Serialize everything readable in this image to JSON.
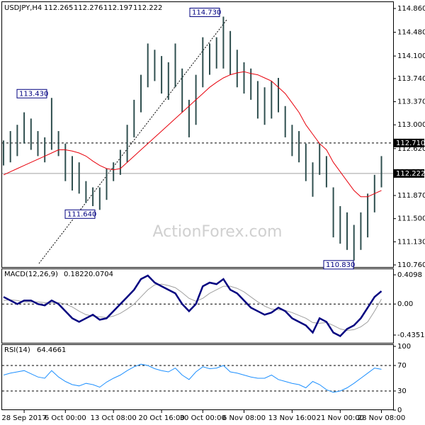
{
  "chart_data": {
    "type": "ohlc",
    "title": "USDJPY,H4",
    "quote": [
      112.265,
      112.276,
      112.197,
      112.222
    ],
    "watermark": "ActionForex.com",
    "x": [
      null,
      null,
      null,
      "28 Sep 2017",
      null,
      null,
      null,
      null,
      null,
      "6 Oct 00:00",
      null,
      null,
      null,
      null,
      null,
      null,
      "13 Oct 08:00",
      null,
      null,
      null,
      null,
      null,
      null,
      "20 Oct 16:00",
      null,
      null,
      null,
      null,
      null,
      "30 Oct 00:00",
      null,
      null,
      null,
      null,
      null,
      "6 Nov 08:00",
      null,
      null,
      null,
      null,
      null,
      null,
      "13 Nov 16:00",
      null,
      null,
      null,
      null,
      null,
      null,
      "21 Nov 00:00",
      null,
      null,
      null,
      null,
      null,
      "28 Nov 08:00"
    ],
    "high": [
      112.75,
      112.9,
      113.0,
      113.2,
      113.1,
      112.9,
      112.8,
      113.43,
      112.9,
      112.7,
      112.5,
      112.4,
      112.1,
      112.0,
      112.0,
      112.3,
      112.4,
      112.6,
      113.0,
      113.4,
      113.8,
      114.3,
      114.2,
      114.1,
      114.0,
      114.3,
      113.9,
      113.4,
      113.8,
      114.4,
      114.3,
      114.4,
      114.73,
      114.5,
      114.2,
      114.0,
      113.9,
      113.7,
      113.6,
      113.7,
      113.75,
      113.3,
      113.0,
      112.9,
      112.7,
      112.4,
      112.7,
      112.5,
      112.0,
      111.7,
      111.6,
      111.4,
      111.6,
      111.9,
      112.2,
      112.5
    ],
    "low": [
      112.35,
      112.4,
      112.5,
      112.7,
      112.6,
      112.5,
      112.4,
      112.6,
      112.5,
      112.1,
      111.95,
      111.9,
      111.75,
      111.7,
      111.64,
      111.8,
      112.1,
      112.2,
      112.4,
      112.8,
      113.2,
      113.6,
      113.7,
      113.5,
      113.4,
      113.6,
      113.2,
      112.8,
      113.0,
      113.6,
      113.8,
      113.9,
      113.9,
      113.8,
      113.6,
      113.5,
      113.4,
      113.1,
      113.0,
      113.1,
      113.2,
      112.8,
      112.5,
      112.4,
      112.1,
      111.85,
      112.2,
      112.0,
      111.2,
      111.1,
      111.0,
      110.83,
      111.0,
      111.2,
      111.6,
      112.0
    ],
    "ma": [
      112.2,
      112.25,
      112.3,
      112.35,
      112.4,
      112.45,
      112.5,
      112.55,
      112.6,
      112.6,
      112.58,
      112.55,
      112.5,
      112.42,
      112.35,
      112.3,
      112.28,
      112.3,
      112.4,
      112.5,
      112.6,
      112.7,
      112.8,
      112.9,
      113.0,
      113.1,
      113.2,
      113.3,
      113.4,
      113.5,
      113.6,
      113.68,
      113.75,
      113.8,
      113.83,
      113.85,
      113.82,
      113.8,
      113.75,
      113.7,
      113.6,
      113.5,
      113.35,
      113.2,
      113.0,
      112.85,
      112.7,
      112.6,
      112.4,
      112.25,
      112.1,
      111.95,
      111.85,
      111.85,
      111.9,
      111.95
    ],
    "bar_color": "#2f4f4f",
    "ma_color": "#e8000b",
    "ylim": [
      110.76,
      114.86
    ],
    "yticks": [
      {
        "value": 114.86,
        "label": "114.860"
      },
      {
        "value": 114.48,
        "label": "114.480"
      },
      {
        "value": 114.1,
        "label": "114.100"
      },
      {
        "value": 113.74,
        "label": "113.740"
      },
      {
        "value": 113.37,
        "label": "113.370"
      },
      {
        "value": 113.0,
        "label": "113.000"
      },
      {
        "value": 112.62,
        "label": "112.620"
      },
      {
        "value": 111.87,
        "label": "111.870"
      },
      {
        "value": 111.5,
        "label": "111.500"
      },
      {
        "value": 111.13,
        "label": "111.130"
      },
      {
        "value": 110.76,
        "label": "110.760"
      }
    ],
    "annotations": [
      {
        "value": 114.73,
        "label": "114.730"
      },
      {
        "value": 113.43,
        "label": "113.430"
      },
      {
        "value": 111.64,
        "label": "111.640"
      },
      {
        "value": 110.83,
        "label": "110.830"
      }
    ],
    "level": {
      "value": 112.71,
      "label": "112.710"
    },
    "last": 112.222,
    "macd": {
      "title": "MACD(12,26,9)",
      "readout": [
        0.1822,
        0.0704
      ],
      "color": "#000080",
      "signal_color": "#a0a0a0",
      "values": [
        0.1,
        0.05,
        0.0,
        0.05,
        0.05,
        0.0,
        -0.02,
        0.05,
        0.0,
        -0.1,
        -0.2,
        -0.25,
        -0.2,
        -0.15,
        -0.22,
        -0.2,
        -0.1,
        0.0,
        0.1,
        0.2,
        0.35,
        0.4,
        0.3,
        0.25,
        0.2,
        0.15,
        0.0,
        -0.1,
        0.0,
        0.25,
        0.3,
        0.28,
        0.35,
        0.2,
        0.15,
        0.05,
        -0.05,
        -0.1,
        -0.15,
        -0.12,
        -0.05,
        -0.1,
        -0.2,
        -0.25,
        -0.3,
        -0.4,
        -0.2,
        -0.25,
        -0.4,
        -0.45,
        -0.35,
        -0.3,
        -0.2,
        -0.05,
        0.1,
        0.18
      ],
      "signal": [
        0.05,
        0.06,
        0.05,
        0.03,
        0.03,
        0.03,
        0.02,
        0.02,
        0.02,
        0.0,
        -0.04,
        -0.1,
        -0.15,
        -0.17,
        -0.18,
        -0.19,
        -0.17,
        -0.13,
        -0.07,
        0.0,
        0.1,
        0.2,
        0.27,
        0.28,
        0.26,
        0.23,
        0.16,
        0.08,
        0.04,
        0.08,
        0.15,
        0.2,
        0.25,
        0.25,
        0.22,
        0.17,
        0.1,
        0.03,
        -0.03,
        -0.07,
        -0.08,
        -0.09,
        -0.12,
        -0.16,
        -0.2,
        -0.26,
        -0.27,
        -0.26,
        -0.3,
        -0.35,
        -0.37,
        -0.36,
        -0.32,
        -0.25,
        -0.1,
        0.07
      ],
      "ylim": [
        -0.4351,
        0.4098
      ],
      "yticks": [
        0.4098,
        {
          "value": 0,
          "label": "0.00"
        },
        -0.4351
      ]
    },
    "rsi": {
      "title": "RSI(14)",
      "readout": 64.4661,
      "color": "#1e90ff",
      "values": [
        55,
        58,
        60,
        62,
        57,
        52,
        50,
        62,
        52,
        45,
        40,
        38,
        42,
        40,
        36,
        44,
        50,
        55,
        62,
        68,
        72,
        70,
        65,
        62,
        60,
        66,
        55,
        48,
        60,
        68,
        65,
        66,
        70,
        60,
        58,
        55,
        52,
        50,
        50,
        55,
        48,
        45,
        42,
        40,
        35,
        45,
        40,
        32,
        28,
        30,
        35,
        42,
        50,
        58,
        66,
        64
      ],
      "ylim": [
        0,
        100
      ],
      "yticks": [
        100,
        70,
        30,
        0
      ]
    }
  }
}
